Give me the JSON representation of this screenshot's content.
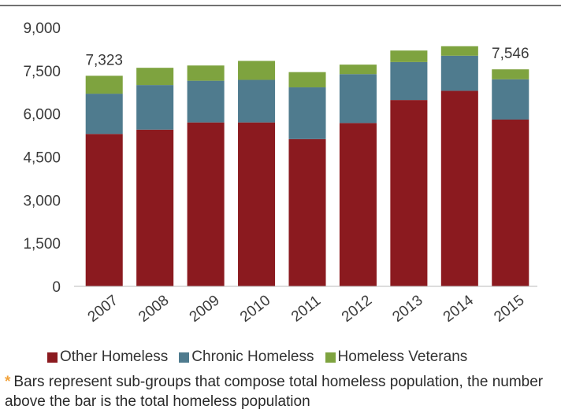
{
  "chart_data": {
    "type": "bar",
    "stacked": true,
    "categories": [
      "2007",
      "2008",
      "2009",
      "2010",
      "2011",
      "2012",
      "2013",
      "2014",
      "2015"
    ],
    "series": [
      {
        "name": "Other Homeless",
        "color": "#8b1a1f",
        "values": [
          5300,
          5450,
          5700,
          5700,
          5120,
          5680,
          6480,
          6800,
          5800
        ]
      },
      {
        "name": "Chronic Homeless",
        "color": "#4f7b8e",
        "values": [
          1400,
          1550,
          1450,
          1480,
          1800,
          1700,
          1320,
          1220,
          1400
        ]
      },
      {
        "name": "Homeless Veterans",
        "color": "#7ea33f",
        "values": [
          623,
          600,
          530,
          660,
          530,
          330,
          400,
          330,
          346
        ]
      }
    ],
    "total_labels": {
      "2007": "7,323",
      "2015": "7,546"
    },
    "yticks": [
      "0",
      "1,500",
      "3,000",
      "4,500",
      "6,000",
      "7,500",
      "9,000"
    ],
    "ylim": [
      0,
      9000
    ],
    "grid": false,
    "legend_position": "bottom"
  },
  "note": {
    "asterisk": "*",
    "text": "Bars represent sub-groups that compose total homeless population, the number above the bar is the total homeless population"
  }
}
